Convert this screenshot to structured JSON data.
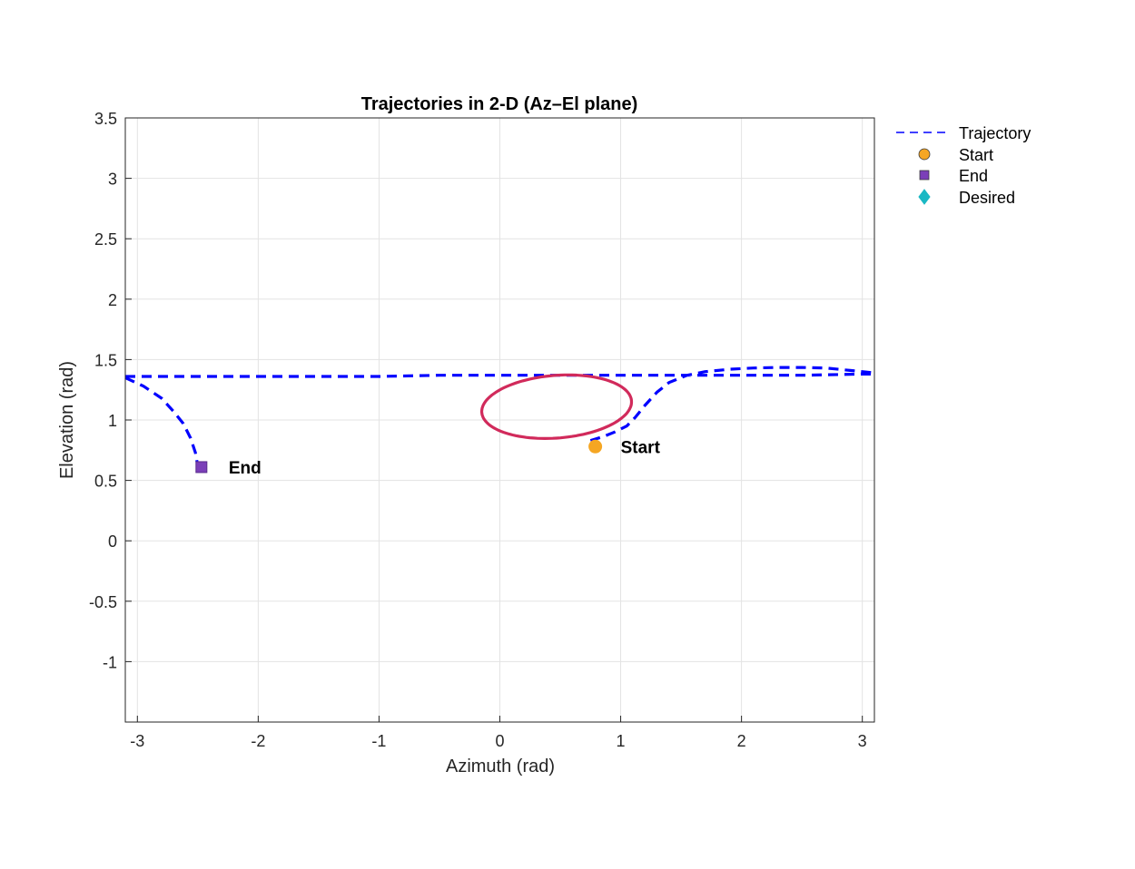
{
  "chart_data": {
    "type": "line",
    "title": "Trajectories in 2-D (Az–El plane)",
    "xlabel": "Azimuth (rad)",
    "ylabel": "Elevation (rad)",
    "xlim": [
      -3.1,
      3.1
    ],
    "ylim": [
      -1.5,
      3.5
    ],
    "xticks": [
      -3,
      -2,
      -1,
      0,
      1,
      2,
      3
    ],
    "xtick_labels": [
      "-3",
      "-2",
      "-1",
      "0",
      "1",
      "2",
      "3"
    ],
    "yticks": [
      -1,
      -0.5,
      0,
      0.5,
      1,
      1.5,
      2,
      2.5,
      3,
      3.5
    ],
    "ytick_labels": [
      "-1",
      "-0.5",
      "0",
      "0.5",
      "1",
      "1.5",
      "2",
      "2.5",
      "3",
      "3.5"
    ],
    "grid": true,
    "legend_position": "outside-top-right",
    "legend": [
      {
        "label": "Trajectory",
        "marker": "dashed-line",
        "color": "#0000ff"
      },
      {
        "label": "Start",
        "marker": "circle",
        "color": "#f5a623"
      },
      {
        "label": "End",
        "marker": "square",
        "color": "#7b3fb8"
      },
      {
        "label": "Desired",
        "marker": "diamond",
        "color": "#1ab8c4"
      }
    ],
    "series": [
      {
        "name": "Trajectory",
        "style": "dashed",
        "color": "#0000ff",
        "x": [
          0.75,
          0.85,
          0.95,
          1.05,
          1.12,
          1.2,
          1.3,
          1.4,
          1.55,
          1.7,
          1.9,
          2.1,
          2.3,
          2.5,
          2.7,
          2.9,
          3.1,
          null,
          -3.1,
          -2.5,
          -2.0,
          -1.5,
          -1.0,
          -0.5,
          0.0,
          0.5,
          1.0,
          1.5,
          2.0,
          2.5,
          3.0,
          3.1,
          null,
          -3.1,
          -2.95,
          -2.8,
          -2.7,
          -2.62,
          -2.56,
          -2.52,
          -2.5
        ],
        "y": [
          0.83,
          0.86,
          0.9,
          0.95,
          1.02,
          1.12,
          1.23,
          1.31,
          1.37,
          1.4,
          1.42,
          1.43,
          1.435,
          1.435,
          1.43,
          1.41,
          1.39,
          null,
          1.36,
          1.36,
          1.36,
          1.36,
          1.36,
          1.37,
          1.37,
          1.37,
          1.37,
          1.37,
          1.37,
          1.37,
          1.38,
          1.38,
          null,
          1.35,
          1.28,
          1.18,
          1.07,
          0.97,
          0.85,
          0.73,
          0.62
        ]
      },
      {
        "name": "",
        "style": "solid",
        "color": "#d12a5b",
        "center": [
          0.47,
          1.11
        ],
        "radius": [
          0.62,
          0.26
        ],
        "tilt": 0.04
      }
    ],
    "points": {
      "start": {
        "x": 0.79,
        "y": 0.78,
        "color": "#f5a623",
        "marker": "circle",
        "label": "Start"
      },
      "end": {
        "x": -2.47,
        "y": 0.61,
        "color": "#7b3fb8",
        "marker": "square",
        "label": "End"
      }
    }
  }
}
